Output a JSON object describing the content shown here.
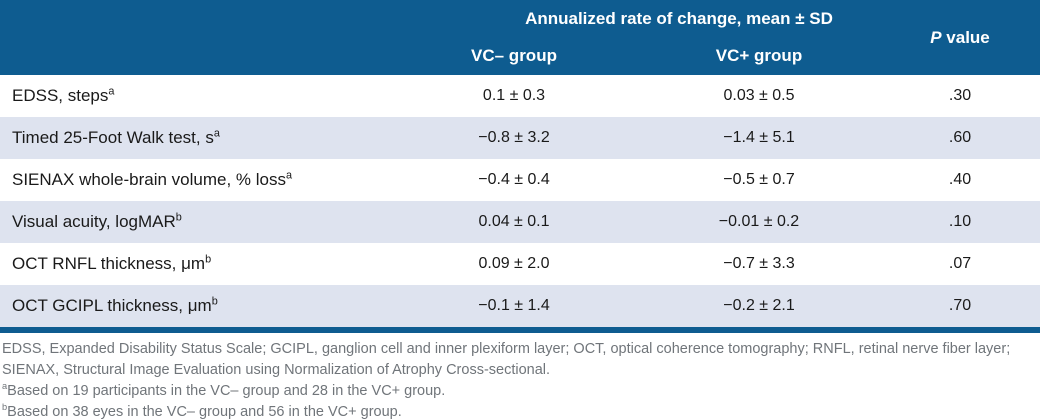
{
  "table": {
    "header": {
      "group_title": "Annualized rate of change, mean ± SD",
      "col_vc_minus": "VC– group",
      "col_vc_plus": "VC+ group",
      "p_italic": "P",
      "p_rest": " value"
    },
    "rows": [
      {
        "label": "EDSS, steps",
        "sup": "a",
        "vc_minus": "0.1 ± 0.3",
        "vc_plus": "0.03 ± 0.5",
        "p": ".30"
      },
      {
        "label": "Timed 25-Foot Walk test, s",
        "sup": "a",
        "vc_minus": "−0.8 ± 3.2",
        "vc_plus": "−1.4 ± 5.1",
        "p": ".60"
      },
      {
        "label": "SIENAX whole-brain volume, % loss",
        "sup": "a",
        "vc_minus": "−0.4 ± 0.4",
        "vc_plus": "−0.5 ± 0.7",
        "p": ".40"
      },
      {
        "label": "Visual acuity, logMAR",
        "sup": "b",
        "vc_minus": "0.04 ± 0.1",
        "vc_plus": "−0.01 ± 0.2",
        "p": ".10"
      },
      {
        "label": "OCT RNFL thickness, μm",
        "sup": "b",
        "vc_minus": "0.09 ± 2.0",
        "vc_plus": "−0.7 ± 3.3",
        "p": ".07"
      },
      {
        "label": "OCT GCIPL thickness, μm",
        "sup": "b",
        "vc_minus": "−0.1 ± 1.4",
        "vc_plus": "−0.2 ± 2.1",
        "p": ".70"
      }
    ]
  },
  "footnotes": {
    "abbreviations": "EDSS, Expanded Disability Status Scale; GCIPL, ganglion cell and inner plexiform layer; OCT, optical coherence tomography; RNFL, retinal nerve fiber layer; SIENAX, Structural Image Evaluation using Normalization of Atrophy Cross-sectional.",
    "note_a_sup": "a",
    "note_a": "Based on 19 participants in the VC– group and 28 in the VC+ group.",
    "note_b_sup": "b",
    "note_b": "Based on 38 eyes in the VC– group and 56 in the VC+ group."
  },
  "colors": {
    "header_bg": "#0e5c90",
    "row_alt_bg": "#dee3ef",
    "body_text": "#1a1a1a",
    "footnote_text": "#70757a"
  }
}
